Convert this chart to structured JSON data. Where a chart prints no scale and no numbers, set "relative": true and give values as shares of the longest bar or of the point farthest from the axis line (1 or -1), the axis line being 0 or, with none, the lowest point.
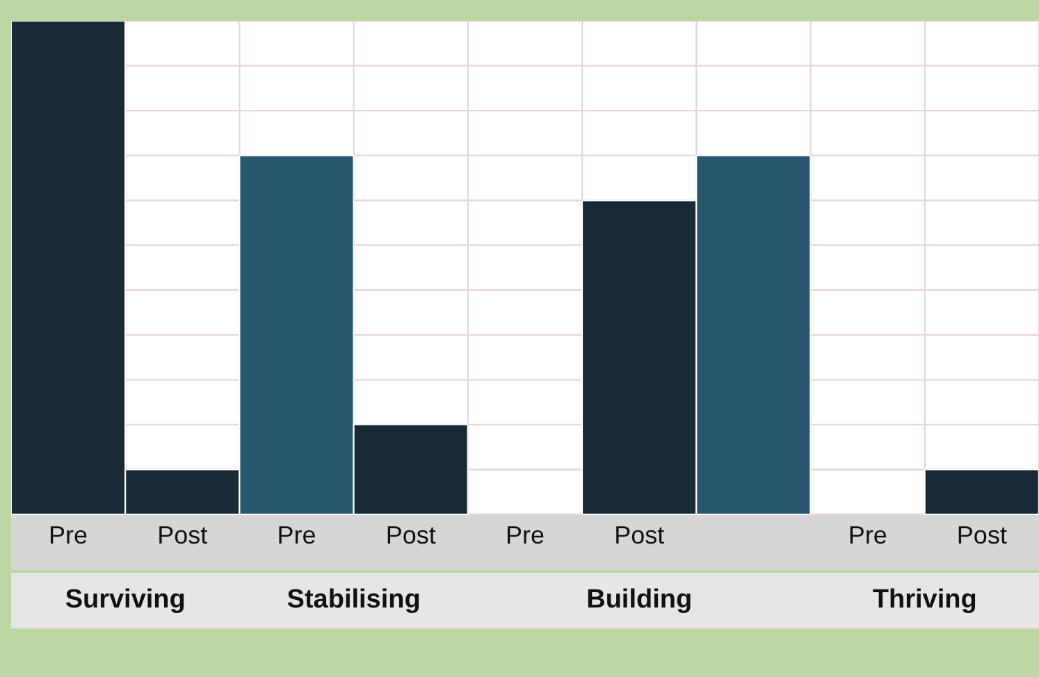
{
  "chart_data": {
    "type": "bar",
    "relative": true,
    "categories": [
      "Pre",
      "Post",
      "Pre",
      "Post",
      "Pre",
      "Post",
      null,
      "Pre",
      "Post"
    ],
    "values": [
      1,
      0.0909,
      0.727,
      0.182,
      0,
      0.636,
      0.727,
      0,
      0.0909
    ],
    "colors": [
      "#182a35",
      "#182a35",
      "#27566e",
      "#182a35",
      "#182a35",
      "#182a35",
      "#27566e",
      "#182a35",
      "#182a35"
    ],
    "annotations": [
      "Surviving",
      "Stabilising",
      "Building",
      "Thriving"
    ],
    "grid": true
  }
}
